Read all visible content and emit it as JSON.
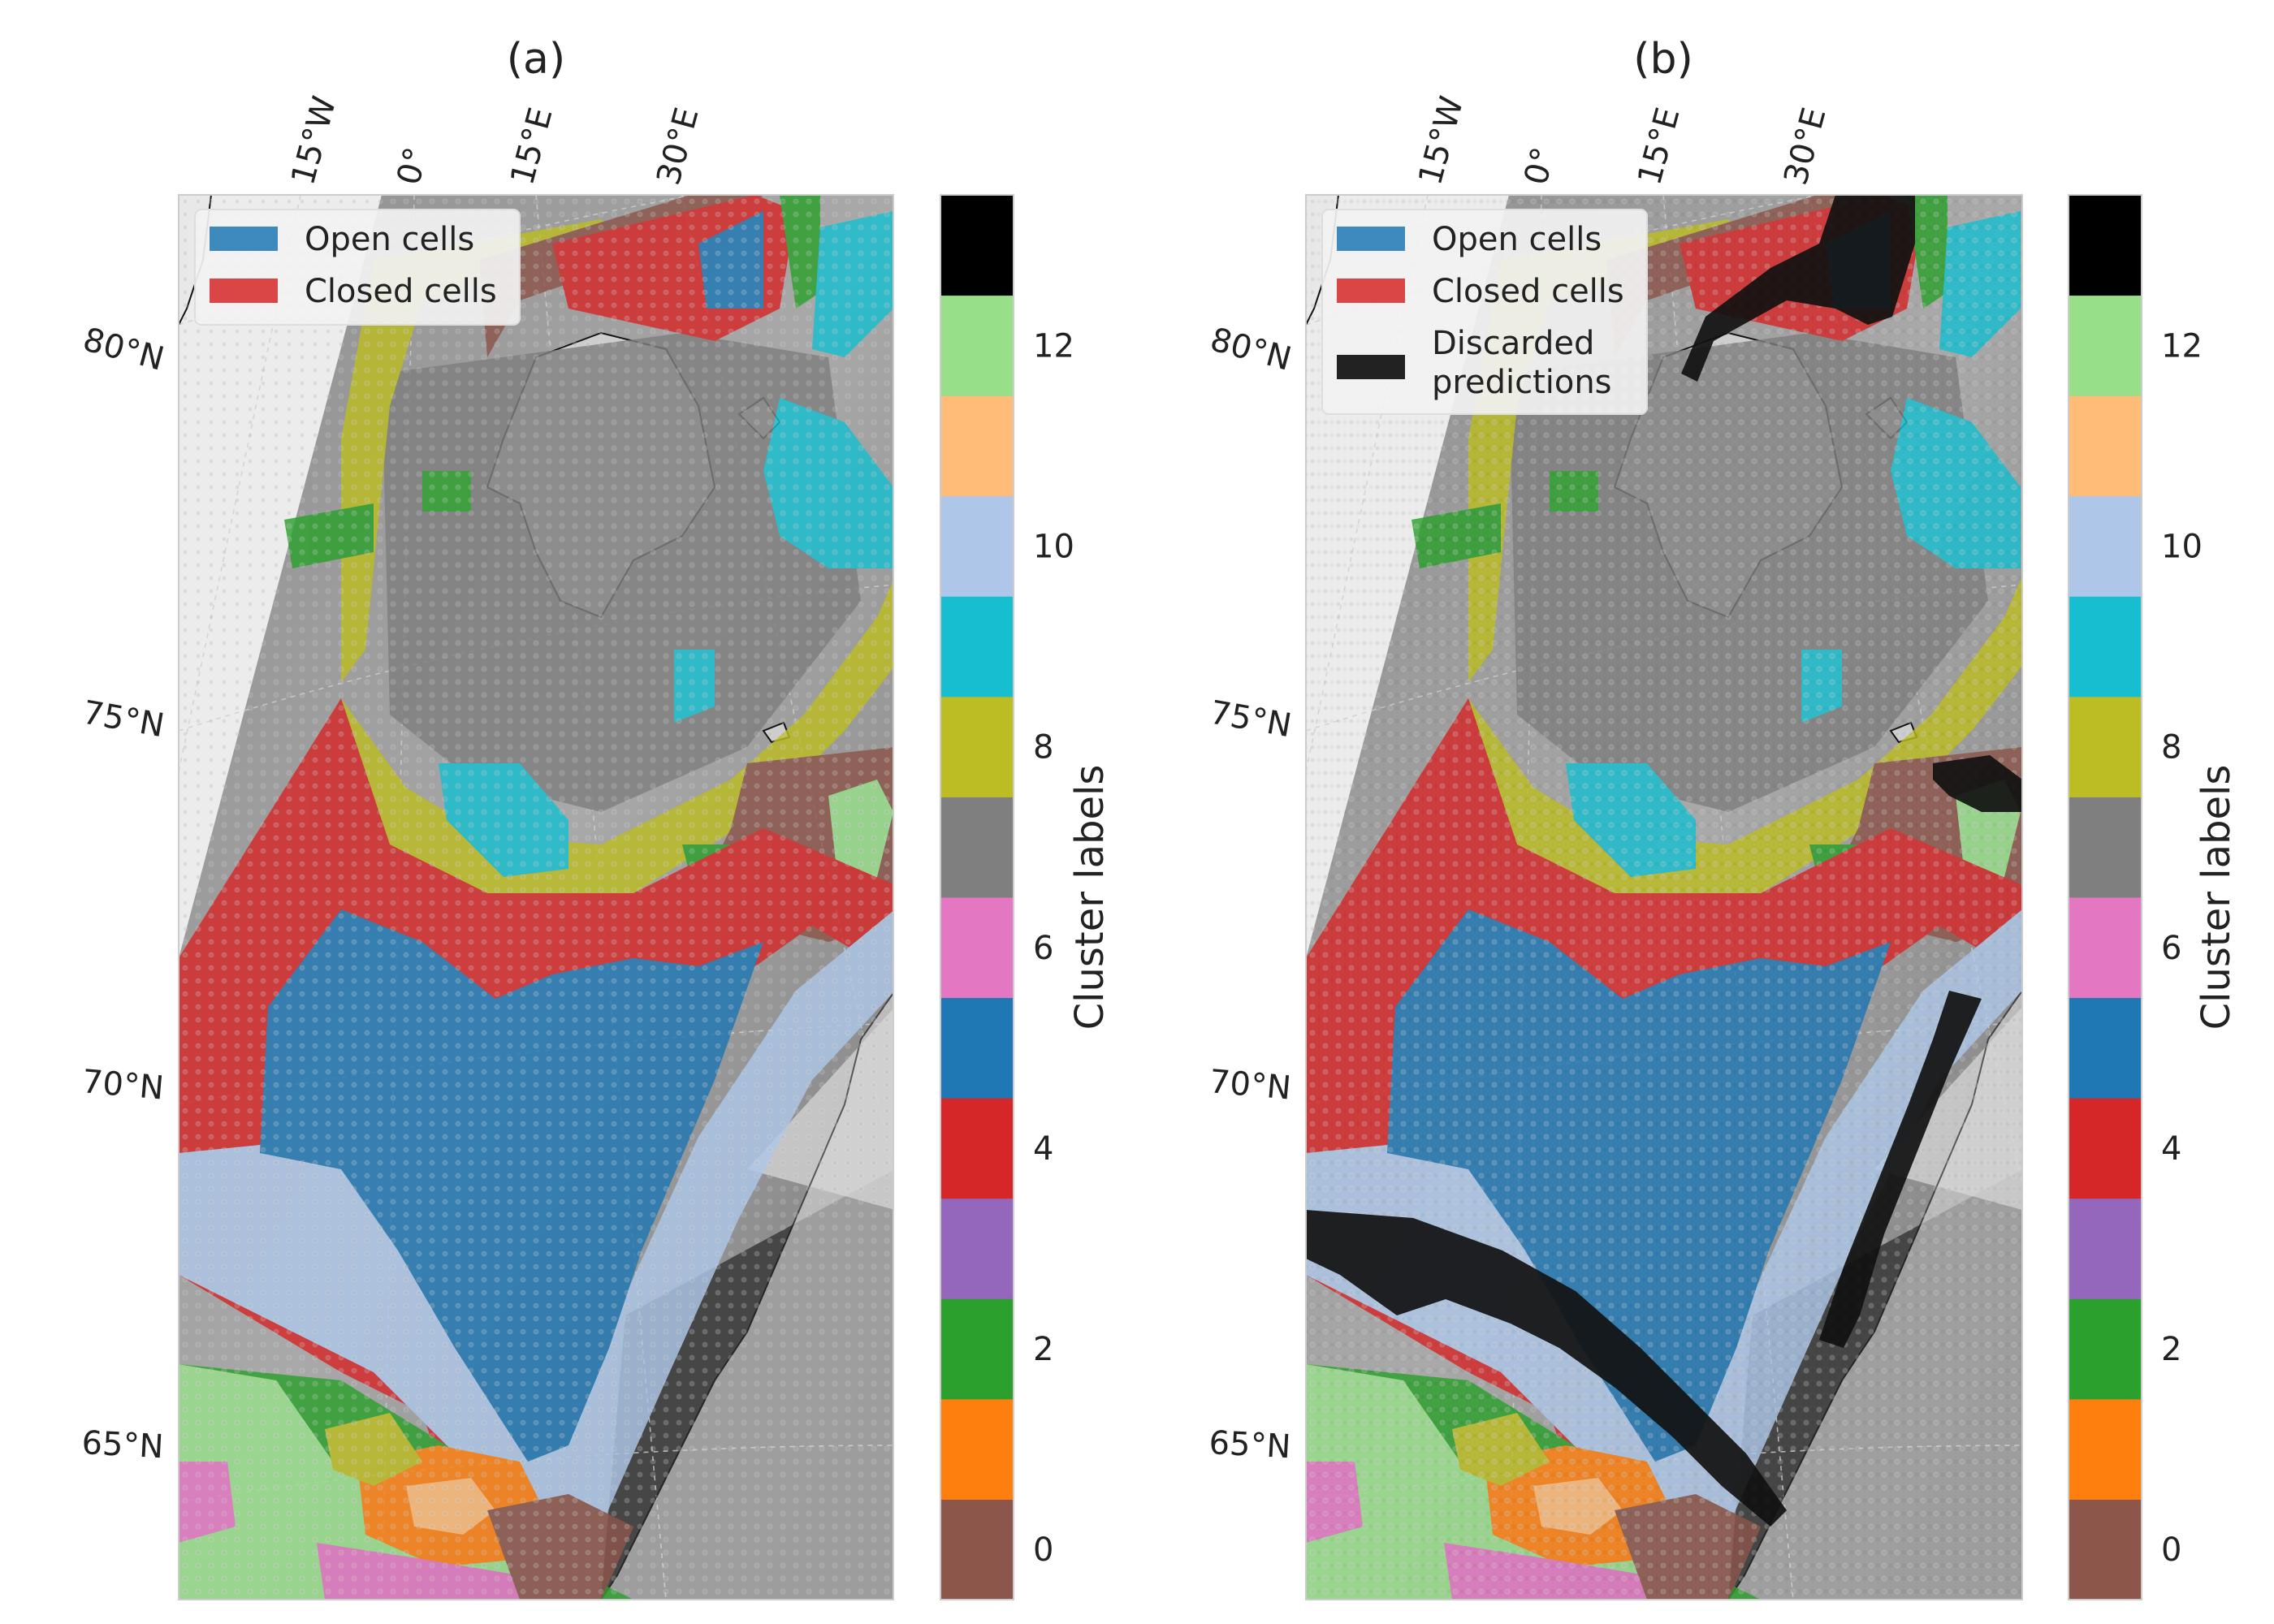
{
  "panels": [
    {
      "id": "a",
      "title": "(a)",
      "legend": [
        {
          "label": "Open cells",
          "color": "#1f77b4"
        },
        {
          "label": "Closed cells",
          "color": "#d62728"
        }
      ]
    },
    {
      "id": "b",
      "title": "(b)",
      "legend": [
        {
          "label": "Open cells",
          "color": "#1f77b4"
        },
        {
          "label": "Closed cells",
          "color": "#d62728"
        },
        {
          "label": "Discarded predictions",
          "color": "#111111"
        }
      ]
    }
  ],
  "lon_ticks": [
    "15°W",
    "0°",
    "15°E",
    "30°E"
  ],
  "lat_ticks": [
    "80°N",
    "75°N",
    "70°N",
    "65°N"
  ],
  "colorbar": {
    "label": "Cluster labels",
    "tick_labels": [
      "0",
      "2",
      "4",
      "6",
      "8",
      "10",
      "12"
    ],
    "colors": [
      "#8c564b",
      "#ff7f0e",
      "#2ca02c",
      "#9467bd",
      "#d62728",
      "#1f77b4",
      "#e377c2",
      "#7f7f7f",
      "#bcbd22",
      "#17becf",
      "#aec7e8",
      "#ffbb78",
      "#98df8a",
      "#000000"
    ]
  }
}
